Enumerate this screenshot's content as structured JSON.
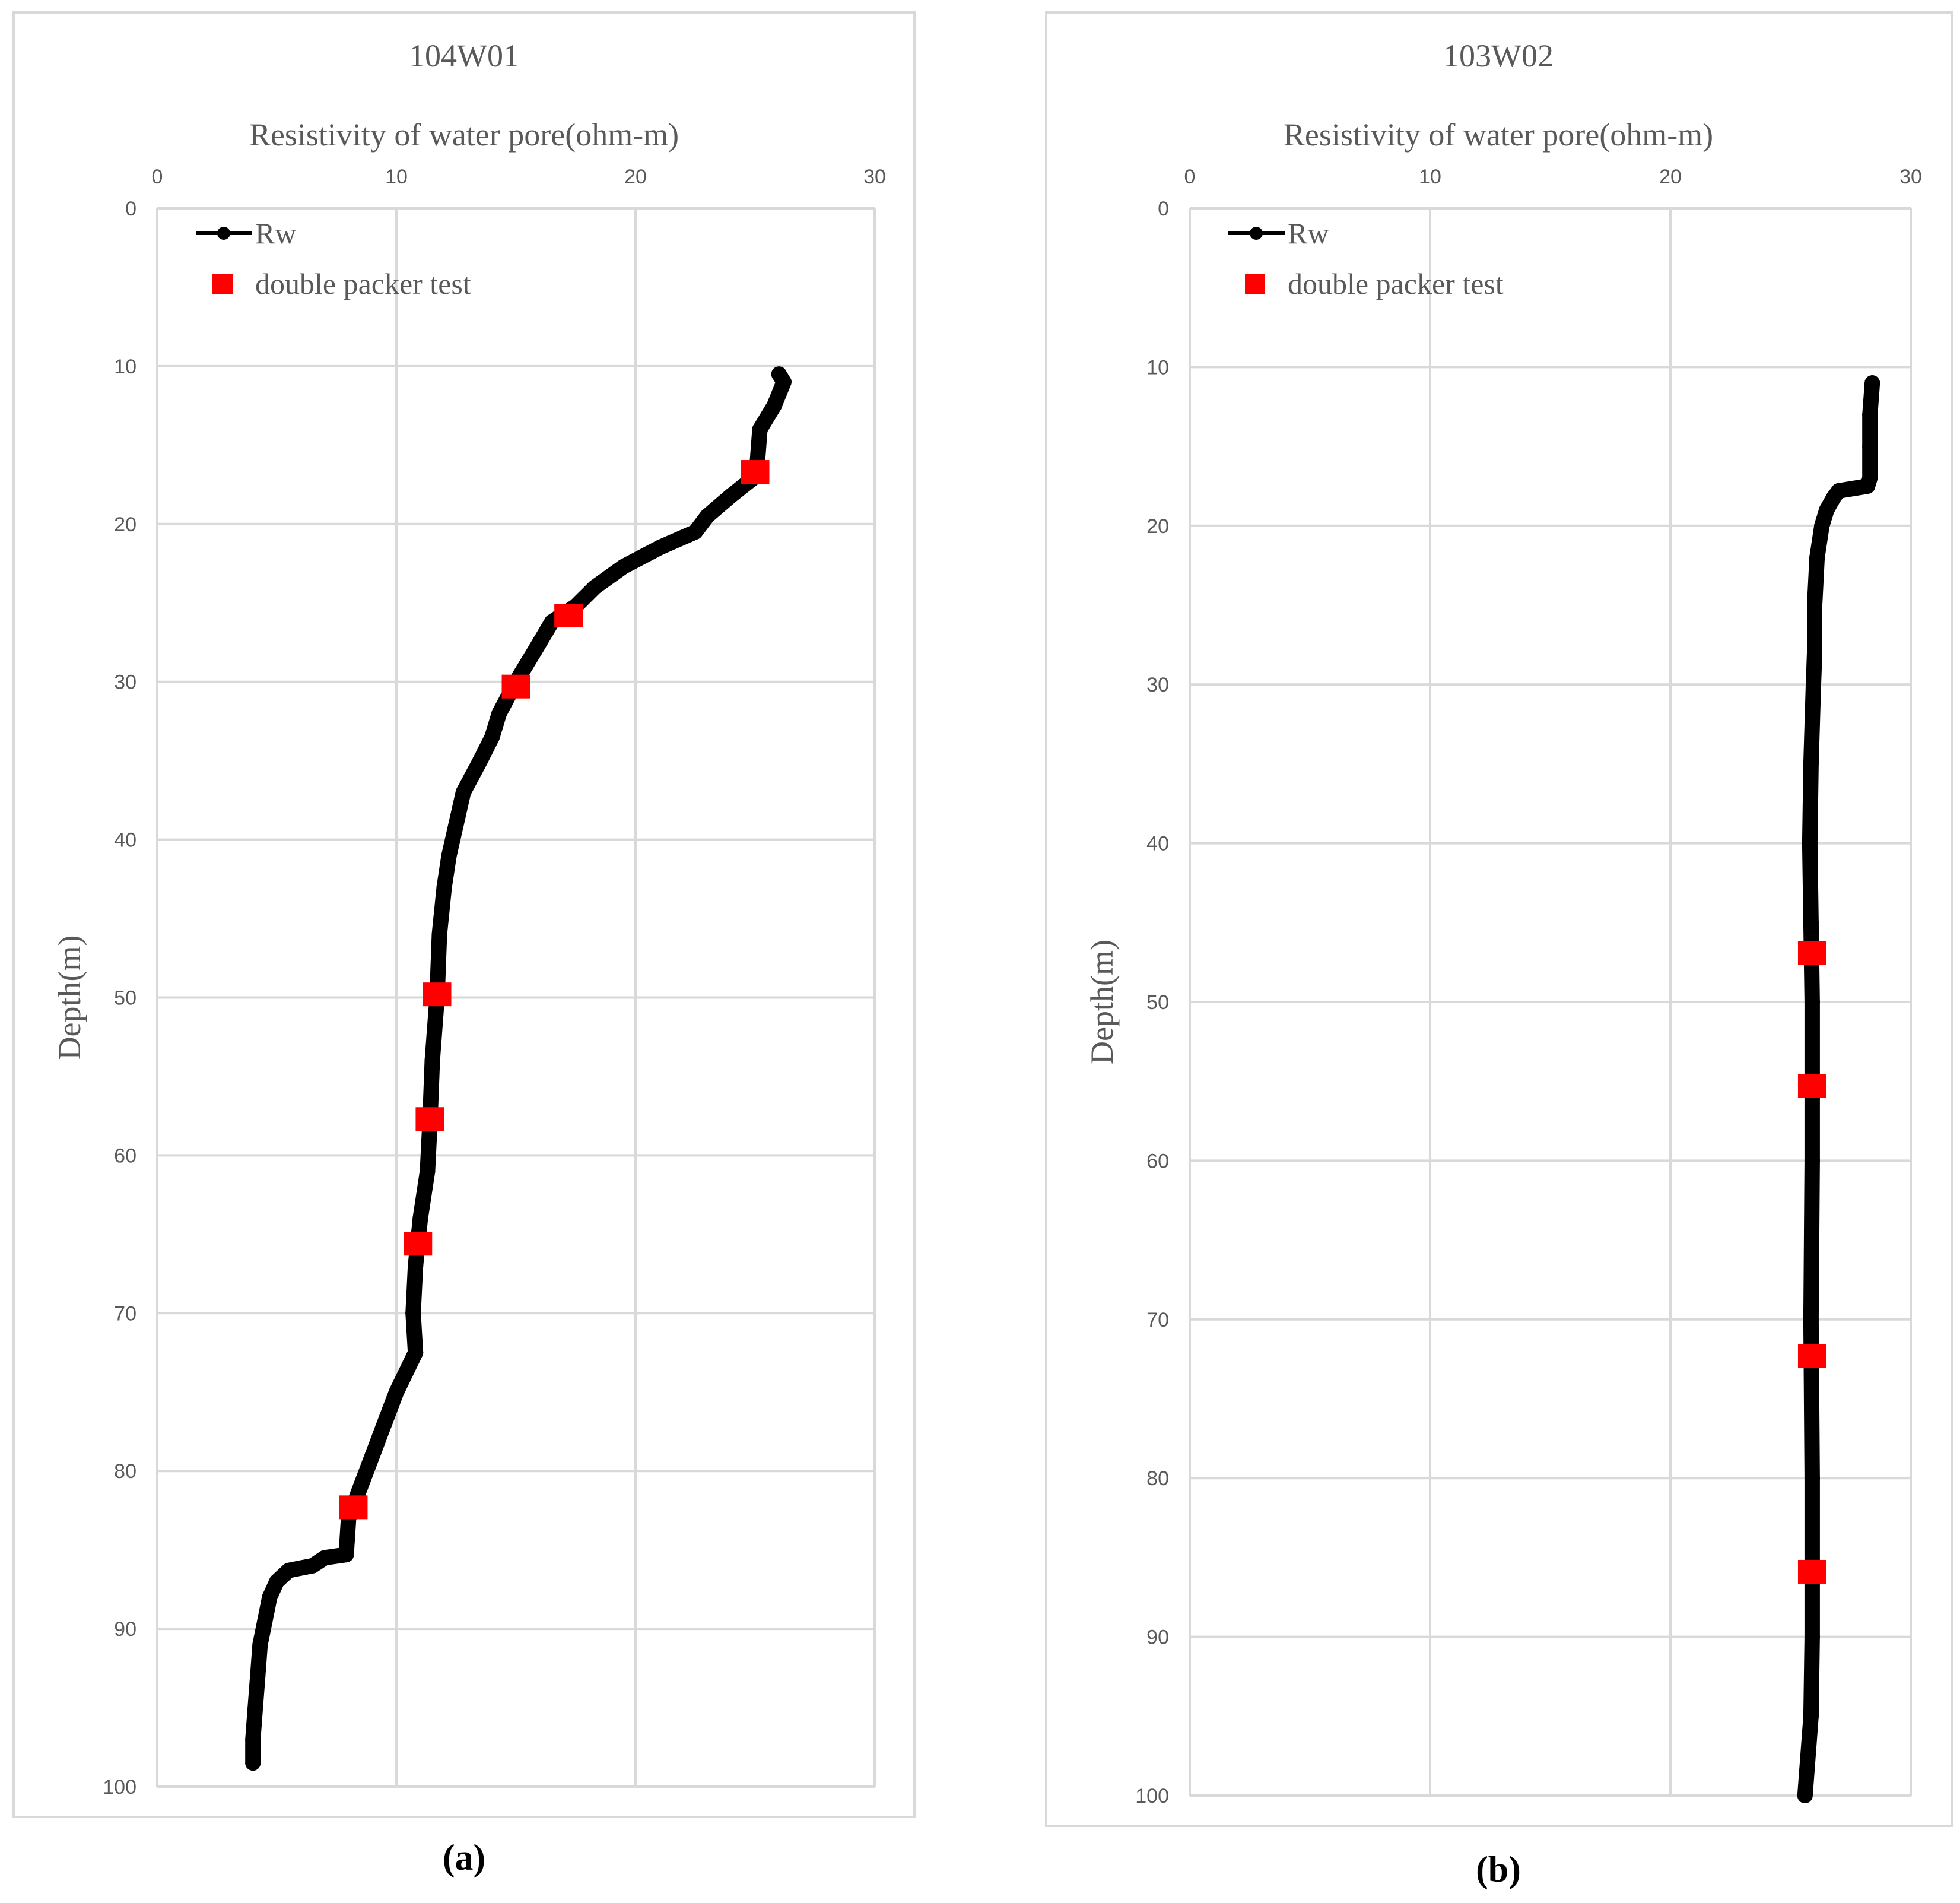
{
  "chart_data": [
    {
      "type": "line",
      "title": "104W01",
      "xlabel": "Resistivity  of water pore(ohm-m)",
      "ylabel": "Depth(m)",
      "caption": "(a)",
      "xlim": [
        0,
        30
      ],
      "ylim": [
        0,
        100
      ],
      "y_inverted": true,
      "x_axis_position": "top",
      "xticks": [
        "0",
        "10",
        "20",
        "30"
      ],
      "yticks": [
        "0",
        "10",
        "20",
        "30",
        "40",
        "50",
        "60",
        "70",
        "80",
        "90",
        "100"
      ],
      "grid": true,
      "legend_position": "top-left",
      "series": [
        {
          "name": "Rw",
          "color": "#000000",
          "kind": "line-marker",
          "points": [
            [
              26,
              10.5
            ],
            [
              26.2,
              11
            ],
            [
              25.8,
              12.5
            ],
            [
              25.2,
              14
            ],
            [
              25.1,
              16
            ],
            [
              25,
              17
            ],
            [
              24,
              18.2
            ],
            [
              23,
              19.5
            ],
            [
              22.5,
              20.5
            ],
            [
              21,
              21.5
            ],
            [
              19.5,
              22.7
            ],
            [
              18.3,
              24
            ],
            [
              17.5,
              25.2
            ],
            [
              16.5,
              26.2
            ],
            [
              15.8,
              28
            ],
            [
              15,
              30
            ],
            [
              14.3,
              32
            ],
            [
              14,
              33.5
            ],
            [
              13.5,
              35
            ],
            [
              12.8,
              37
            ],
            [
              12.5,
              39
            ],
            [
              12.2,
              41
            ],
            [
              12,
              43
            ],
            [
              11.8,
              46
            ],
            [
              11.7,
              50
            ],
            [
              11.5,
              54
            ],
            [
              11.4,
              58
            ],
            [
              11.3,
              61
            ],
            [
              11,
              64
            ],
            [
              10.8,
              67
            ],
            [
              10.7,
              70
            ],
            [
              10.8,
              72.5
            ],
            [
              10,
              75
            ],
            [
              9.5,
              77
            ],
            [
              9,
              79
            ],
            [
              8.5,
              81
            ],
            [
              8,
              83
            ],
            [
              7.9,
              85.3
            ],
            [
              7,
              85.5
            ],
            [
              6.5,
              86
            ],
            [
              5.5,
              86.3
            ],
            [
              5,
              87
            ],
            [
              4.7,
              88
            ],
            [
              4.5,
              89.5
            ],
            [
              4.3,
              91
            ],
            [
              4.2,
              93
            ],
            [
              4.1,
              95
            ],
            [
              4,
              97
            ],
            [
              4,
              98.5
            ]
          ]
        },
        {
          "name": "double packer test",
          "color": "#ff0000",
          "kind": "marker-square",
          "points": [
            [
              25,
              16.7
            ],
            [
              17.2,
              25.8
            ],
            [
              15,
              30.3
            ],
            [
              11.7,
              49.8
            ],
            [
              11.4,
              57.7
            ],
            [
              10.9,
              65.6
            ],
            [
              8.2,
              82.3
            ]
          ]
        }
      ]
    },
    {
      "type": "line",
      "title": "103W02",
      "xlabel": "Resistivity  of water pore(ohm-m)",
      "ylabel": "Depth(m)",
      "caption": "(b)",
      "xlim": [
        0,
        30
      ],
      "ylim": [
        0,
        100
      ],
      "y_inverted": true,
      "x_axis_position": "top",
      "xticks": [
        "0",
        "10",
        "20",
        "30"
      ],
      "yticks": [
        "0",
        "10",
        "20",
        "30",
        "40",
        "50",
        "60",
        "70",
        "80",
        "90",
        "100"
      ],
      "grid": true,
      "legend_position": "top-left",
      "series": [
        {
          "name": "Rw",
          "color": "#000000",
          "kind": "line-marker",
          "points": [
            [
              28.4,
              11
            ],
            [
              28.3,
              13
            ],
            [
              28.3,
              15
            ],
            [
              28.3,
              17
            ],
            [
              28.2,
              17.5
            ],
            [
              27,
              17.8
            ],
            [
              26.8,
              18.2
            ],
            [
              26.5,
              19
            ],
            [
              26.3,
              20
            ],
            [
              26.1,
              22
            ],
            [
              26,
              25
            ],
            [
              26,
              28
            ],
            [
              25.95,
              30
            ],
            [
              25.85,
              35
            ],
            [
              25.8,
              40
            ],
            [
              25.85,
              45
            ],
            [
              25.9,
              50
            ],
            [
              25.9,
              60
            ],
            [
              25.85,
              70
            ],
            [
              25.9,
              80
            ],
            [
              25.9,
              90
            ],
            [
              25.85,
              95
            ],
            [
              25.6,
              100
            ]
          ]
        },
        {
          "name": "double packer test",
          "color": "#ff0000",
          "kind": "marker-square",
          "points": [
            [
              25.9,
              46.9
            ],
            [
              25.9,
              55.3
            ],
            [
              25.9,
              72.3
            ],
            [
              25.9,
              85.9
            ]
          ]
        }
      ]
    }
  ]
}
